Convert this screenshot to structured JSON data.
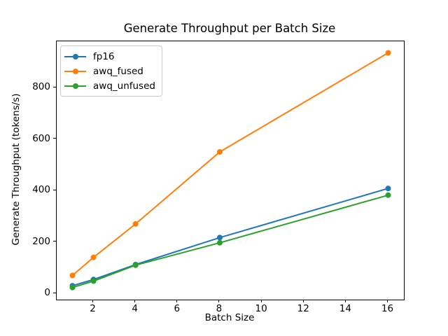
{
  "chart_data": {
    "type": "line",
    "title": "Generate Throughput per Batch Size",
    "xlabel": "Batch Size",
    "ylabel": "Generate Throughput (tokens/s)",
    "x": [
      1,
      2,
      4,
      8,
      16
    ],
    "series": [
      {
        "name": "fp16",
        "color": "#1f77b4",
        "values": [
          30,
          54,
          112,
          217,
          408
        ]
      },
      {
        "name": "awq_fused",
        "color": "#ff7f0e",
        "values": [
          70,
          140,
          270,
          550,
          935
        ]
      },
      {
        "name": "awq_unfused",
        "color": "#2ca02c",
        "values": [
          23,
          48,
          110,
          197,
          382
        ]
      }
    ],
    "xticks": [
      2,
      4,
      6,
      8,
      10,
      12,
      14,
      16
    ],
    "yticks": [
      0,
      200,
      400,
      600,
      800
    ],
    "xlim": [
      0.25,
      16.75
    ],
    "ylim": [
      -24,
      980
    ],
    "legend_position": "upper left",
    "grid": false,
    "marker": "o",
    "line_color_axes": "#000000"
  }
}
